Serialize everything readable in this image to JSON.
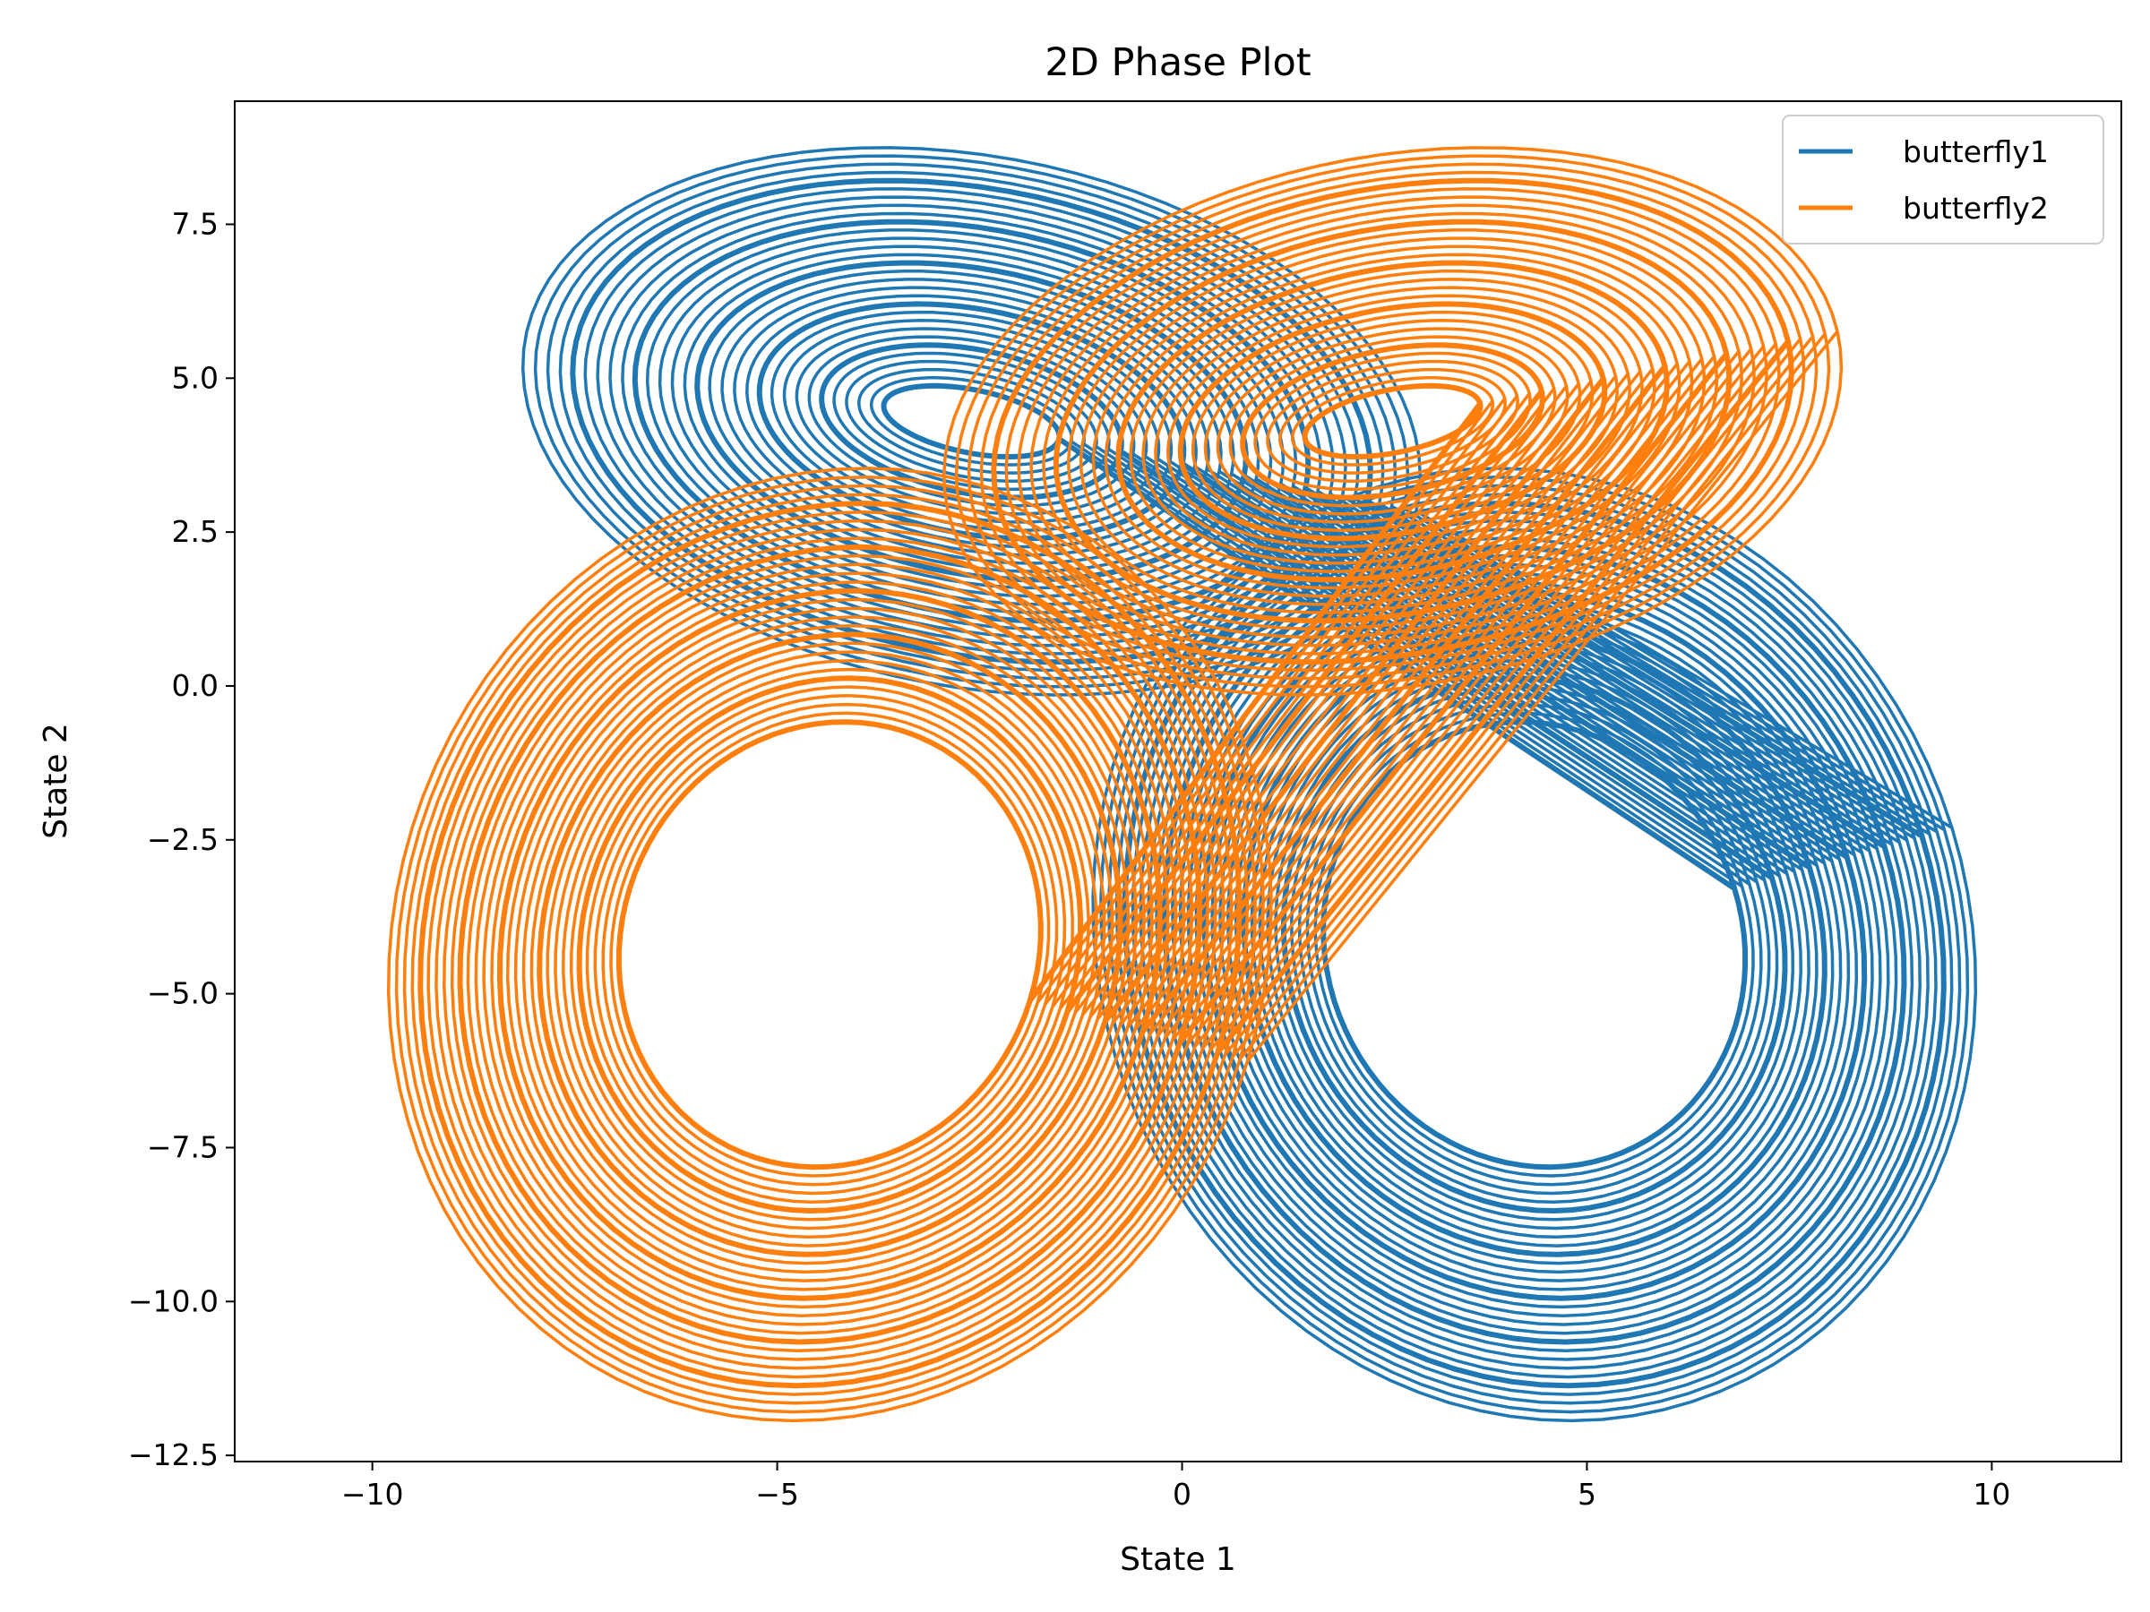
{
  "chart_data": {
    "type": "line",
    "title": "2D Phase Plot",
    "xlabel": "State 1",
    "ylabel": "State 2",
    "xlim": [
      -11.7,
      11.6
    ],
    "ylim": [
      -12.6,
      9.5
    ],
    "xticks": [
      -10,
      -5,
      0,
      5,
      10
    ],
    "xtick_labels": [
      "−10",
      "−5",
      "0",
      "5",
      "10"
    ],
    "yticks": [
      -12.5,
      -10.0,
      -7.5,
      -5.0,
      -2.5,
      0.0,
      2.5,
      5.0,
      7.5
    ],
    "ytick_labels": [
      "−12.5",
      "−10.0",
      "−7.5",
      "−5.0",
      "−2.5",
      "0.0",
      "2.5",
      "5.0",
      "7.5"
    ],
    "grid": false,
    "legend": {
      "position": "top-right"
    },
    "series": [
      {
        "name": "butterfly1",
        "color": "#1f77b4",
        "loop": {
          "right_lobe": {
            "cx": 4.35,
            "cy": -4.2,
            "rx_inner": 2.9,
            "rx_outer": 10.4,
            "ry_inner": 3.5,
            "ry_outer": 11.7
          },
          "left_lobe": {
            "cx": -2.6,
            "cy": 4.3,
            "rx_inner": 1.2,
            "rx_outer": 7.1,
            "ry_inner": 0.5,
            "ry_outer": 8.5
          },
          "center": [
            0.0,
            0.0
          ]
        }
      },
      {
        "name": "butterfly2",
        "color": "#ff7f0e",
        "loop": {
          "left_lobe": {
            "cx": -4.35,
            "cy": -4.2,
            "rx_inner": 2.9,
            "rx_outer": 10.4,
            "ry_inner": 3.5,
            "ry_outer": 11.7
          },
          "right_lobe": {
            "cx": 2.6,
            "cy": 4.3,
            "rx_inner": 1.2,
            "rx_outer": 7.1,
            "ry_inner": 0.5,
            "ry_outer": 8.5
          },
          "center": [
            0.0,
            0.0
          ]
        }
      }
    ]
  }
}
